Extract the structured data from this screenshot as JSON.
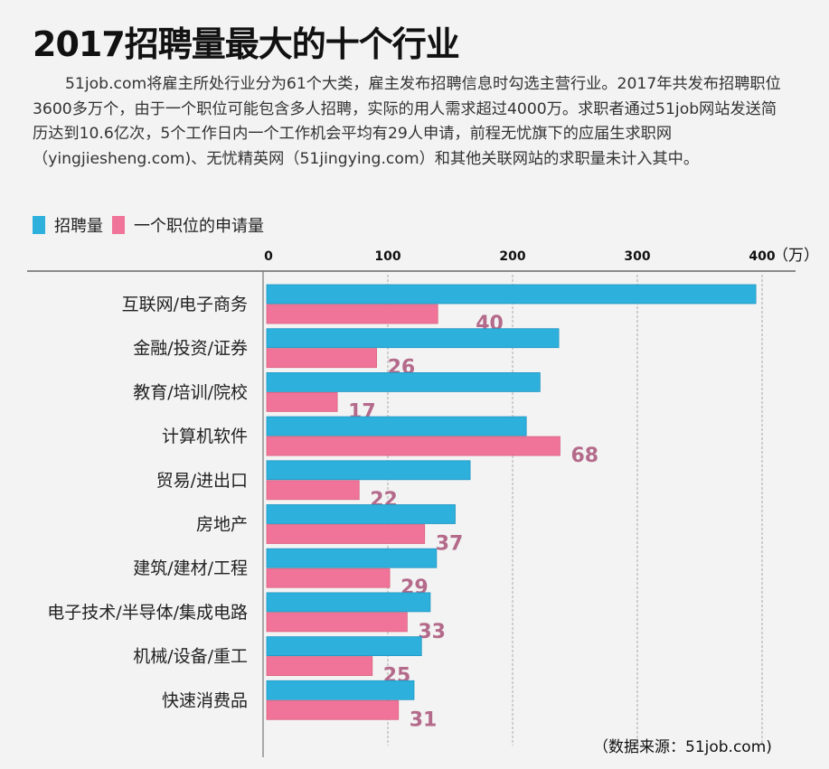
{
  "title": "2017招聘量最大的十个行业",
  "intro": "51job.com将雇主所处行业分为61个大类，雇主发布招聘信息时勾选主营行业。2017年共发布招聘职位3600多万个，由于一个职位可能包含多人招聘，实际的用人需求超过4000万。求职者通过51job网站发送简历达到10.6亿次，5个工作日内一个工作机会平均有29人申请，前程无忧旗下的应届生求职网（yingjiesheng.com)、无忧精英网（51jingying.com）和其他关联网站的求职量未计入其中。",
  "source": "（数据来源：51job.com)",
  "colors": {
    "postings": "#2eb0dc",
    "applicants": "#f07499",
    "label": "#b46a8a",
    "background": "#f3f3f3"
  },
  "chart_data": {
    "type": "bar",
    "orientation": "horizontal",
    "title": "2017招聘量最大的十个行业",
    "xlabel": "（万）",
    "ylabel": "",
    "xlim": [
      0,
      400
    ],
    "xticks": [
      "0",
      "100",
      "200",
      "300",
      "400"
    ],
    "unit_label": "（万）",
    "grid": true,
    "legend_position": "top-left",
    "categories": [
      "互联网/电子商务",
      "金融/投资/证券",
      "教育/培训/院校",
      "计算机软件",
      "贸易/进出口",
      "房地产",
      "建筑/建材/工程",
      "电子技术/半导体/集成电路",
      "机械/设备/重工",
      "快速消费品"
    ],
    "series": [
      {
        "name": "招聘量",
        "unit": "万",
        "values": [
          395,
          237,
          222,
          211,
          166,
          154,
          139,
          134,
          127,
          121
        ]
      },
      {
        "name": "一个职位的申请量",
        "unit": "人",
        "values": [
          40,
          26,
          17,
          68,
          22,
          37,
          29,
          33,
          25,
          31
        ],
        "data_labels": [
          "40",
          "26",
          "17",
          "68",
          "22",
          "37",
          "29",
          "33",
          "25",
          "31"
        ]
      }
    ]
  }
}
